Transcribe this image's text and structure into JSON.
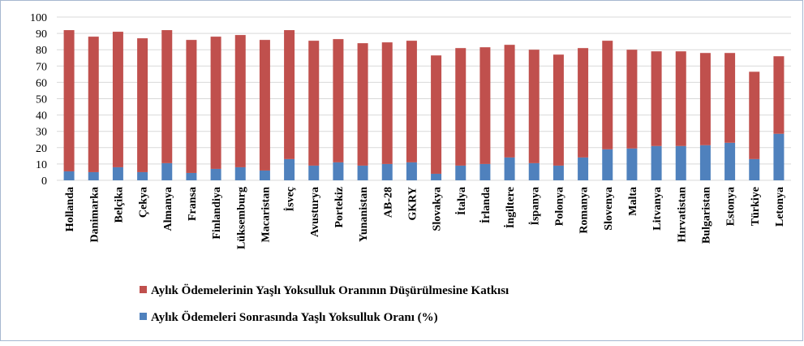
{
  "chart_data": {
    "type": "stacked_bar",
    "categories": [
      "Hollanda",
      "Danimarka",
      "Belçika",
      "Çekya",
      "Almanya",
      "Fransa",
      "Finlandiya",
      "Lüksemburg",
      "Macaristan",
      "İsveç",
      "Avusturya",
      "Portekiz",
      "Yunanistan",
      "AB-28",
      "GKRY",
      "Slovakya",
      "İtalya",
      "İrlanda",
      "İngiltere",
      "İspanya",
      "Polonya",
      "Romanya",
      "Slovenya",
      "Malta",
      "Litvanya",
      "Hırvatistan",
      "Bulgaristan",
      "Estonya",
      "Türkiye",
      "Letonya"
    ],
    "series": [
      {
        "name": "Aylık Ödemelerinin Yaşlı Yoksulluk Oranının Düşürülmesine Katkısı",
        "color": "#c0504d",
        "values": [
          86.5,
          83,
          83,
          82,
          81.5,
          81.5,
          81,
          81,
          80,
          79,
          76.5,
          75.5,
          75,
          74.5,
          74.5,
          72.5,
          72,
          71.5,
          69,
          69.5,
          68,
          67,
          66.5,
          60.5,
          58,
          58,
          56.5,
          55,
          53.5,
          47.5
        ]
      },
      {
        "name": "Aylık Ödemeleri Sonrasında Yaşlı Yoksulluk Oranı (%)",
        "color": "#4f81bd",
        "values": [
          5.5,
          5,
          8,
          5,
          10.5,
          4.5,
          7,
          8,
          6,
          13,
          9,
          11,
          9,
          10,
          11,
          4,
          9,
          10,
          14,
          10.5,
          9,
          14,
          19,
          19.5,
          21,
          21,
          21.5,
          23,
          13,
          28.5
        ]
      }
    ],
    "ylim": [
      0,
      100
    ],
    "yticks": [
      0,
      10,
      20,
      30,
      40,
      50,
      60,
      70,
      80,
      90,
      100
    ],
    "grid": true
  }
}
